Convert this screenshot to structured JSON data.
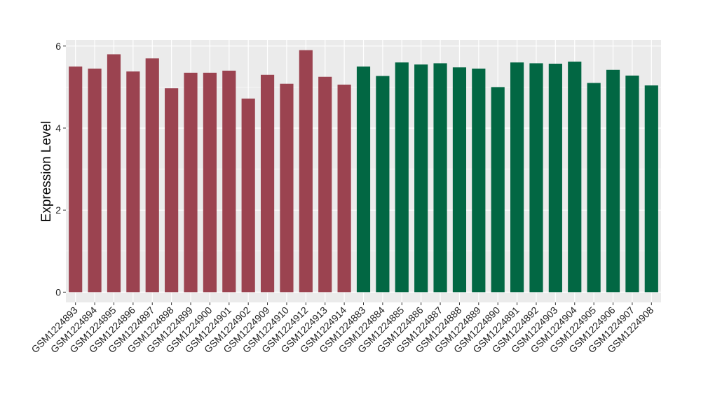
{
  "chart_data": {
    "type": "bar",
    "title": "",
    "xlabel": "",
    "ylabel": "Expression Level",
    "ylim": [
      -0.25,
      6.15
    ],
    "yticks": [
      0,
      2,
      4,
      6
    ],
    "grid": true,
    "legend": "none",
    "categories": [
      "GSM1224893",
      "GSM1224894",
      "GSM1224895",
      "GSM1224896",
      "GSM1224897",
      "GSM1224898",
      "GSM1224899",
      "GSM1224900",
      "GSM1224901",
      "GSM1224902",
      "GSM1224909",
      "GSM1224910",
      "GSM1224912",
      "GSM1224913",
      "GSM1224914",
      "GSM1224883",
      "GSM1224884",
      "GSM1224885",
      "GSM1224886",
      "GSM1224887",
      "GSM1224888",
      "GSM1224889",
      "GSM1224890",
      "GSM1224891",
      "GSM1224892",
      "GSM1224903",
      "GSM1224904",
      "GSM1224905",
      "GSM1224906",
      "GSM1224907",
      "GSM1224908"
    ],
    "values": [
      5.5,
      5.45,
      5.8,
      5.38,
      5.7,
      4.97,
      5.35,
      5.35,
      5.4,
      4.72,
      5.3,
      5.08,
      5.9,
      5.25,
      5.06,
      5.5,
      5.27,
      5.6,
      5.55,
      5.58,
      5.48,
      5.45,
      5.0,
      5.6,
      5.58,
      5.57,
      5.62,
      5.1,
      5.42,
      5.28,
      5.04
    ],
    "groups": [
      1,
      1,
      1,
      1,
      1,
      1,
      1,
      1,
      1,
      1,
      1,
      1,
      1,
      1,
      1,
      2,
      2,
      2,
      2,
      2,
      2,
      2,
      2,
      2,
      2,
      2,
      2,
      2,
      2,
      2,
      2
    ],
    "colors": {
      "group1": "#9b4350",
      "group2": "#026743",
      "panel": "#ebebeb",
      "grid": "#ffffff",
      "tick": "#333333"
    }
  }
}
